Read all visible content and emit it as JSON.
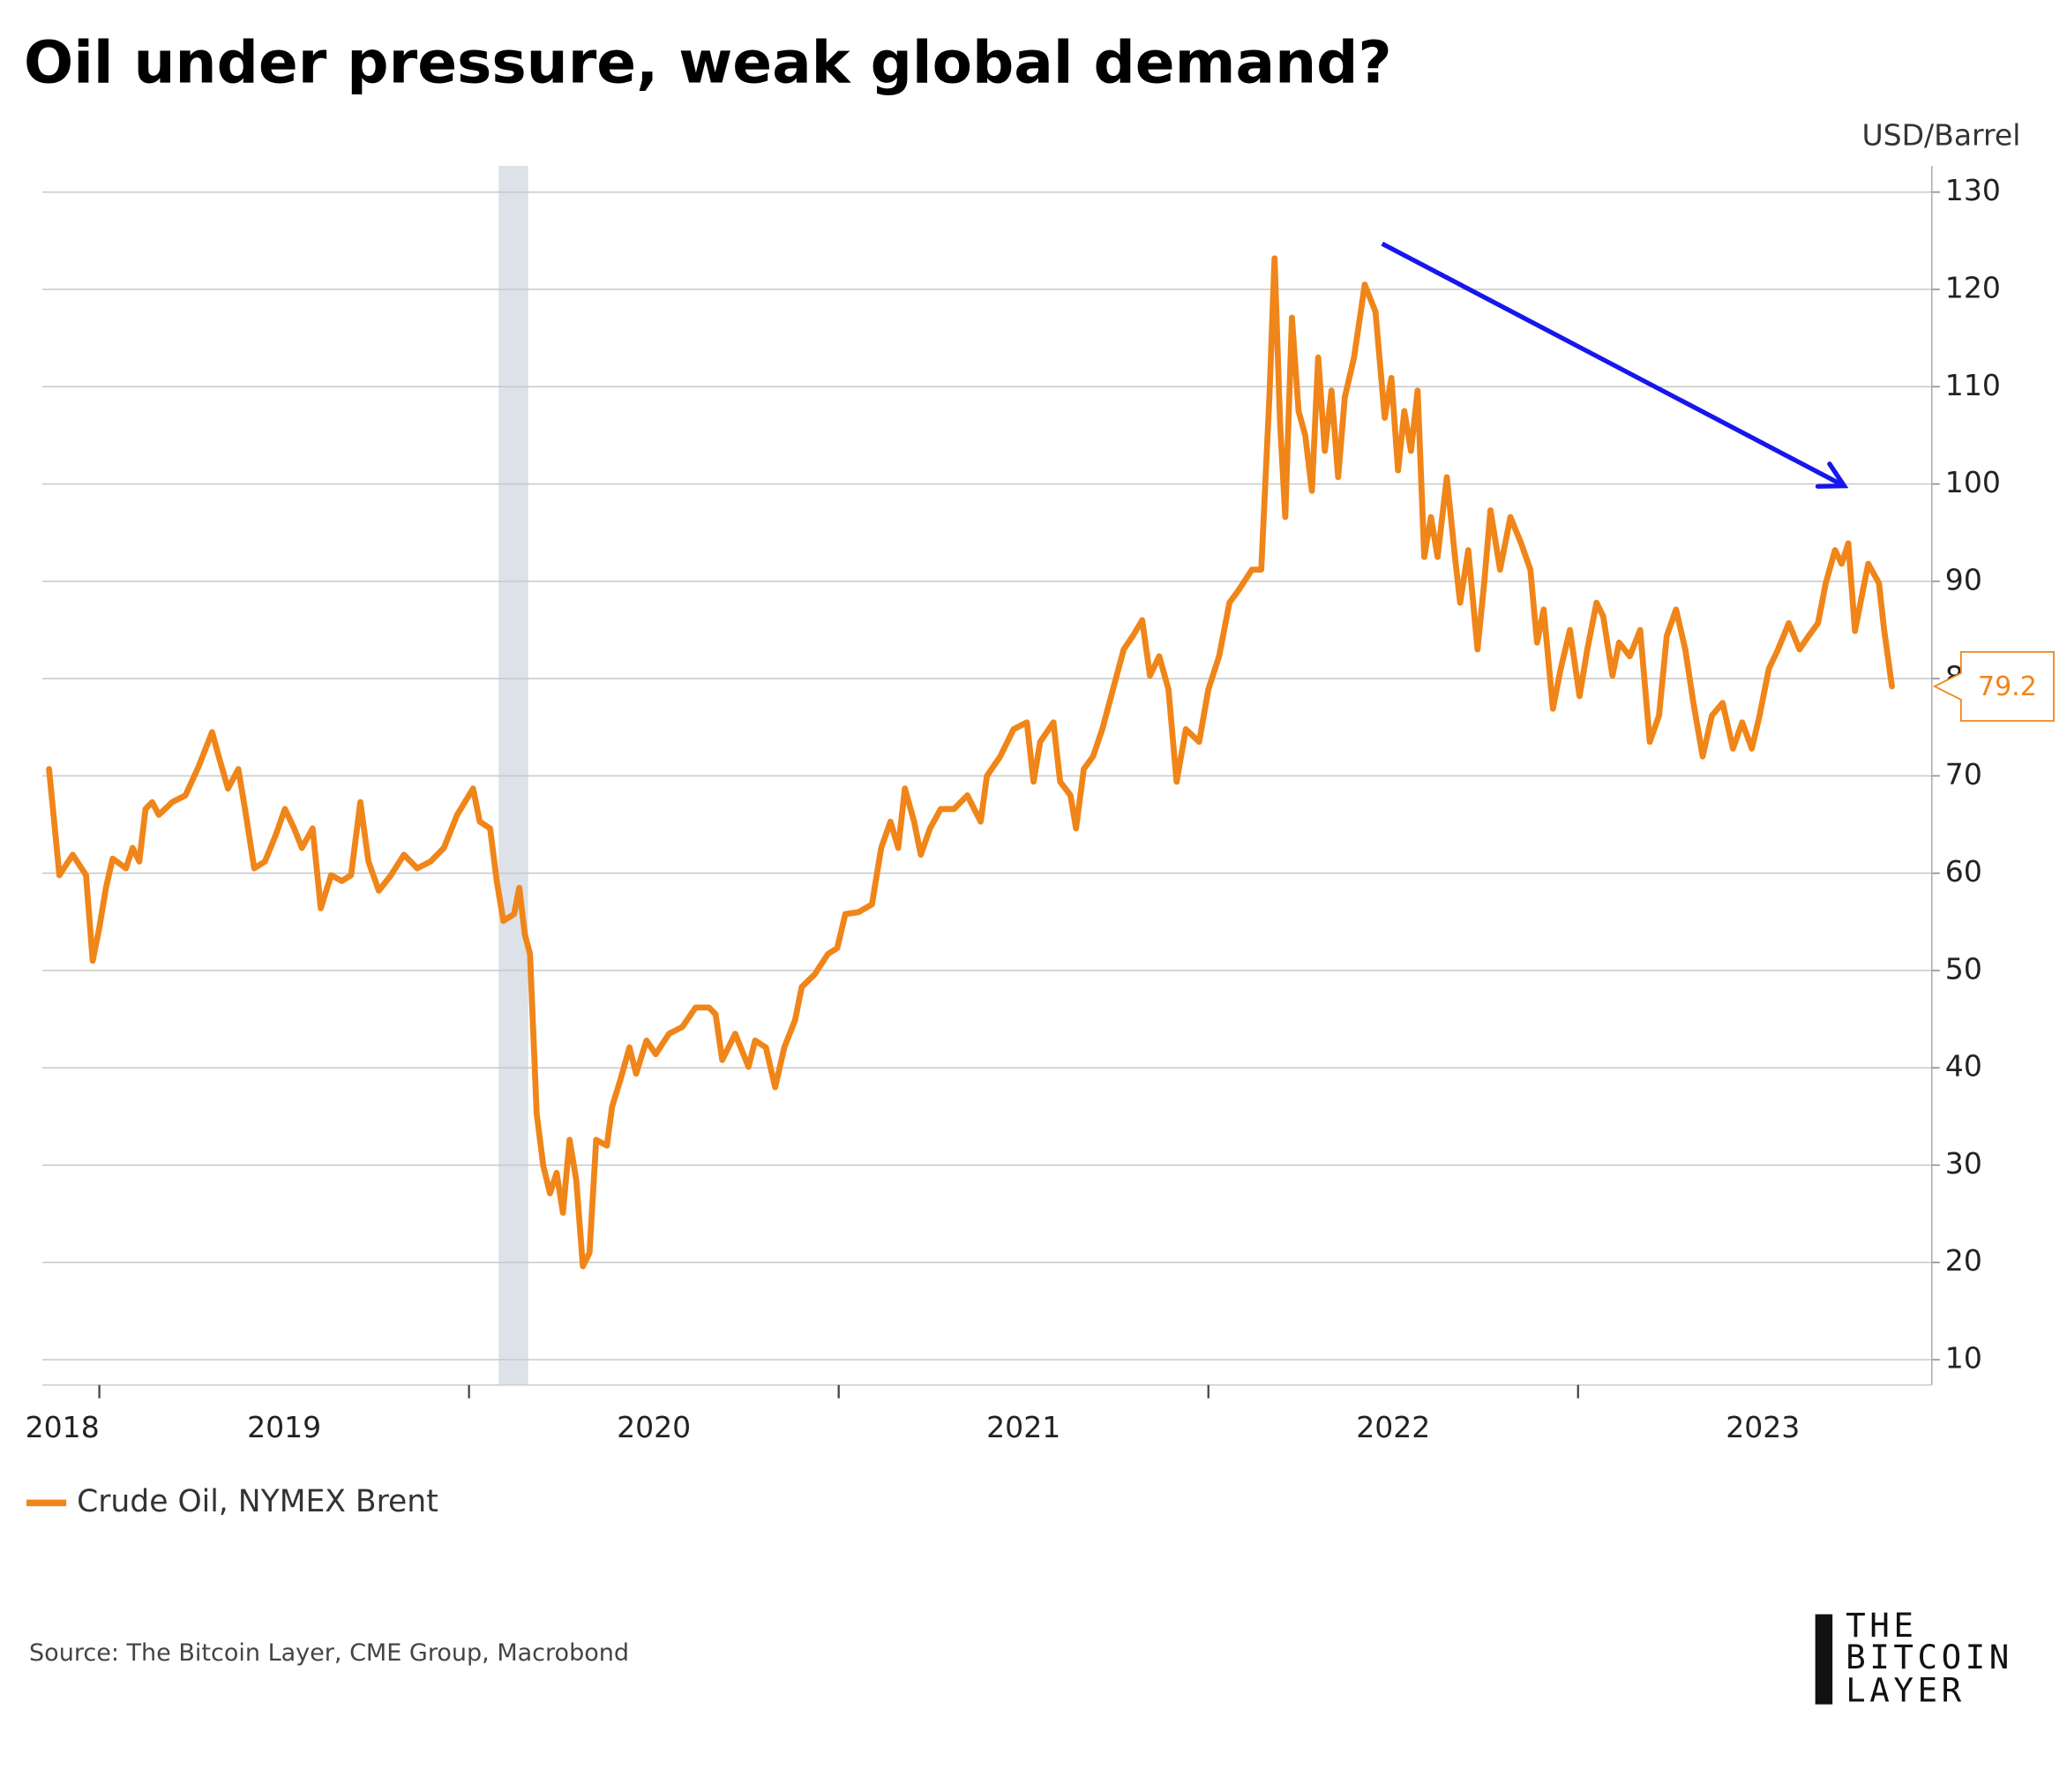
{
  "chart_data": {
    "type": "line",
    "title": "Oil under pressure, weak global demand?",
    "y_axis_label": "USD/Barrel",
    "source": "Source: The Bitcoin Layer, CME Group, Macrobond",
    "logo": {
      "lines": [
        "THE",
        "BITCOIN",
        "LAYER"
      ]
    },
    "xlim": [
      2018.846,
      2023.957
    ],
    "xticks": [
      {
        "value": 2018.9,
        "label": "2018"
      },
      {
        "value": 2019.5,
        "label": "2019"
      },
      {
        "value": 2020.5,
        "label": "2020"
      },
      {
        "value": 2021.5,
        "label": "2021"
      },
      {
        "value": 2022.5,
        "label": "2022"
      },
      {
        "value": 2023.5,
        "label": "2023"
      }
    ],
    "xtick_marks": [
      2019,
      2020,
      2021,
      2022,
      2023
    ],
    "ylim": [
      7.4,
      132.7
    ],
    "yticks": [
      10,
      20,
      30,
      40,
      50,
      60,
      70,
      80,
      90,
      100,
      110,
      120,
      130
    ],
    "grid": true,
    "shaded_ranges": [
      [
        2020.08,
        2020.16
      ]
    ],
    "shade_color": "#dde1e8",
    "arrow": {
      "x": [
        2022.47,
        2023.72
      ],
      "y": [
        124.7,
        99.8
      ],
      "color": "#1616ee"
    },
    "x": [
      2018.864,
      2018.875,
      2018.892,
      2018.928,
      2018.964,
      2018.982,
      2019.0,
      2019.018,
      2019.036,
      2019.072,
      2019.09,
      2019.108,
      2019.125,
      2019.143,
      2019.161,
      2019.197,
      2019.233,
      2019.269,
      2019.305,
      2019.323,
      2019.348,
      2019.376,
      2019.394,
      2019.419,
      2019.448,
      2019.477,
      2019.502,
      2019.527,
      2019.548,
      2019.577,
      2019.599,
      2019.627,
      2019.656,
      2019.681,
      2019.706,
      2019.728,
      2019.756,
      2019.789,
      2019.824,
      2019.86,
      2019.896,
      2019.932,
      2019.968,
      2020.011,
      2020.029,
      2020.057,
      2020.075,
      2020.093,
      2020.122,
      2020.136,
      2020.151,
      2020.165,
      2020.183,
      2020.201,
      2020.219,
      2020.237,
      2020.254,
      2020.272,
      2020.29,
      2020.308,
      2020.326,
      2020.344,
      2020.373,
      2020.387,
      2020.409,
      2020.434,
      2020.452,
      2020.48,
      2020.505,
      2020.541,
      2020.577,
      2020.613,
      2020.649,
      2020.667,
      2020.685,
      2020.72,
      2020.756,
      2020.774,
      2020.803,
      2020.828,
      2020.853,
      2020.882,
      2020.9,
      2020.935,
      2020.971,
      2020.996,
      2021.018,
      2021.054,
      2021.09,
      2021.115,
      2021.14,
      2021.161,
      2021.179,
      2021.204,
      2021.222,
      2021.247,
      2021.276,
      2021.312,
      2021.348,
      2021.384,
      2021.401,
      2021.437,
      2021.473,
      2021.509,
      2021.527,
      2021.545,
      2021.581,
      2021.599,
      2021.627,
      2021.642,
      2021.663,
      2021.688,
      2021.713,
      2021.742,
      2021.771,
      2021.796,
      2021.821,
      2021.842,
      2021.867,
      2021.892,
      2021.914,
      2021.939,
      2021.975,
      2022.0,
      2022.029,
      2022.057,
      2022.082,
      2022.118,
      2022.143,
      2022.165,
      2022.179,
      2022.194,
      2022.208,
      2022.226,
      2022.244,
      2022.262,
      2022.28,
      2022.297,
      2022.315,
      2022.333,
      2022.351,
      2022.369,
      2022.394,
      2022.423,
      2022.452,
      2022.477,
      2022.495,
      2022.513,
      2022.53,
      2022.548,
      2022.566,
      2022.584,
      2022.602,
      2022.62,
      2022.645,
      2022.667,
      2022.681,
      2022.703,
      2022.728,
      2022.746,
      2022.763,
      2022.789,
      2022.817,
      2022.846,
      2022.871,
      2022.889,
      2022.907,
      2022.932,
      2022.953,
      2022.978,
      2023.004,
      2023.025,
      2023.05,
      2023.068,
      2023.093,
      2023.111,
      2023.14,
      2023.168,
      2023.194,
      2023.219,
      2023.24,
      2023.265,
      2023.29,
      2023.312,
      2023.337,
      2023.362,
      2023.391,
      2023.419,
      2023.444,
      2023.47,
      2023.491,
      2023.516,
      2023.541,
      2023.57,
      2023.599,
      2023.624,
      2023.649,
      2023.67,
      2023.695,
      2023.713,
      2023.731,
      2023.749,
      2023.767,
      2023.785,
      2023.814,
      2023.828,
      2023.849
    ],
    "series": [
      {
        "name": "Crude Oil, NYMEX Brent",
        "color": "#f08519",
        "values": [
          70.7,
          66.4,
          59.8,
          61.9,
          59.8,
          51,
          54.4,
          58.5,
          61.5,
          60.5,
          62.6,
          61.2,
          66.6,
          67.3,
          66,
          67.3,
          68,
          71,
          74.5,
          72,
          68.7,
          70.7,
          66.6,
          60.5,
          61.2,
          63.9,
          66.6,
          64.6,
          62.6,
          64.6,
          56.4,
          59.8,
          59.2,
          59.8,
          67.3,
          61.2,
          58.2,
          59.8,
          61.9,
          60.5,
          61.2,
          62.6,
          66,
          68.7,
          65.3,
          64.6,
          59.2,
          55.1,
          55.8,
          58.5,
          53.7,
          51.7,
          35.3,
          29.9,
          27.1,
          29.2,
          25.1,
          32.6,
          28.5,
          19.6,
          21,
          32.6,
          32,
          36,
          38.7,
          42.1,
          39.4,
          42.8,
          41.4,
          43.5,
          44.2,
          46.2,
          46.2,
          45.5,
          40.8,
          43.5,
          40.1,
          42.8,
          42.1,
          38,
          42.1,
          44.9,
          48.3,
          49.6,
          51.7,
          52.3,
          55.8,
          56,
          56.8,
          62.6,
          65.3,
          62.6,
          68.7,
          65.3,
          61.9,
          64.6,
          66.6,
          66.6,
          68,
          65.3,
          70,
          72,
          74.8,
          75.5,
          69.4,
          73.5,
          75.5,
          69.4,
          68,
          64.6,
          70.7,
          72,
          74.8,
          78.9,
          83,
          84.4,
          86,
          80.3,
          82.3,
          78.9,
          69.4,
          74.8,
          73.5,
          78.9,
          82.3,
          87.8,
          89.1,
          91.2,
          91.2,
          108.9,
          123.2,
          106.2,
          96.6,
          117.1,
          107.5,
          105,
          99.3,
          113,
          103.4,
          109.6,
          100.7,
          108.9,
          113,
          120.5,
          117.7,
          106.8,
          110.9,
          101.4,
          107.5,
          103.4,
          109.6,
          92.5,
          96.6,
          92.5,
          100.7,
          92.5,
          87.8,
          93.2,
          83,
          89.8,
          97.3,
          91.2,
          96.6,
          93.9,
          91.2,
          83.7,
          87.1,
          76.9,
          81,
          85,
          78.2,
          83,
          87.8,
          86.4,
          80.3,
          83.7,
          82.3,
          85,
          73.5,
          76.2,
          84.4,
          87.1,
          83,
          77.5,
          72,
          76.2,
          77.5,
          72.8,
          75.5,
          72.8,
          76.2,
          81,
          83,
          85.7,
          83,
          84.4,
          85.7,
          89.8,
          93.2,
          91.8,
          93.9,
          84.9,
          88.4,
          91.8,
          89.8,
          85,
          79.2
        ]
      }
    ]
  }
}
